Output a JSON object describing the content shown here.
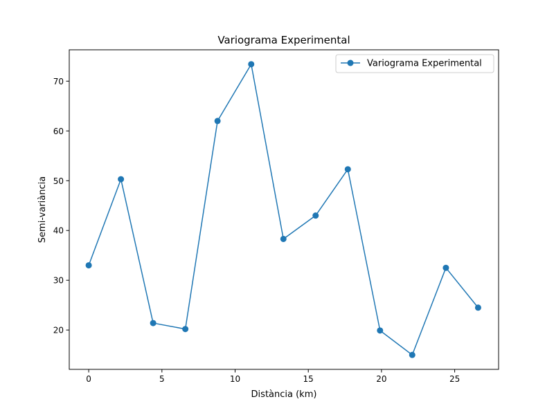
{
  "chart_data": {
    "type": "line",
    "title": "Variograma Experimental",
    "xlabel": "Distància (km)",
    "ylabel": "Semi-variància",
    "xlim": [
      -1.33,
      28.0
    ],
    "ylim": [
      12.1,
      76.3
    ],
    "xticks": [
      0,
      5,
      10,
      15,
      20,
      25
    ],
    "yticks": [
      20,
      30,
      40,
      50,
      60,
      70
    ],
    "grid": false,
    "legend_position": "top-right",
    "series": [
      {
        "name": "Variograma Experimental",
        "color": "#1f77b4",
        "marker": "circle",
        "x": [
          0.0,
          2.2,
          4.4,
          6.6,
          8.8,
          11.1,
          13.3,
          15.5,
          17.7,
          19.9,
          22.1,
          24.4,
          26.6
        ],
        "y": [
          33.0,
          50.3,
          21.4,
          20.2,
          62.0,
          73.4,
          38.3,
          43.0,
          52.3,
          19.9,
          15.0,
          32.5,
          24.5
        ]
      }
    ]
  }
}
